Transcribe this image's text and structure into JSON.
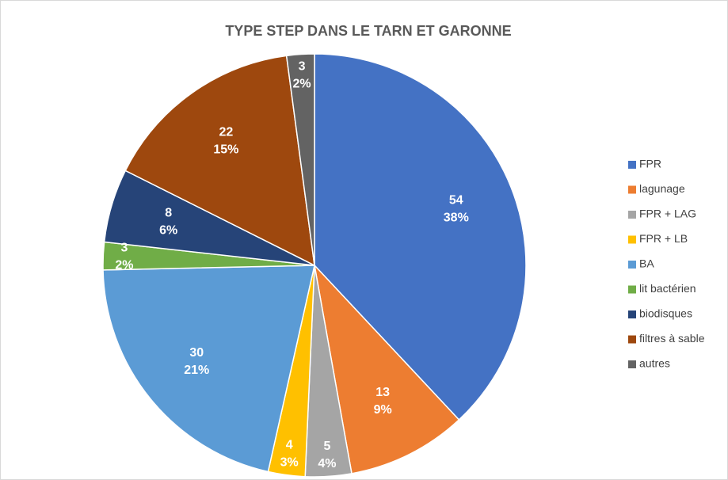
{
  "chart_data": {
    "type": "pie",
    "title": "TYPE STEP DANS LE TARN ET GARONNE",
    "categories": [
      "FPR",
      "lagunage",
      "FPR + LAG",
      "FPR + LB",
      "BA",
      "lit bactérien",
      "biodisques",
      "filtres à sable",
      "autres"
    ],
    "values": [
      54,
      13,
      5,
      4,
      30,
      3,
      8,
      22,
      3
    ],
    "percent_labels": [
      "38%",
      "9%",
      "4%",
      "3%",
      "21%",
      "2%",
      "6%",
      "15%",
      "2%"
    ],
    "colors": [
      "#4472c4",
      "#ed7d31",
      "#a5a5a5",
      "#ffc000",
      "#5b9bd5",
      "#70ad47",
      "#264478",
      "#9e480e",
      "#636363"
    ],
    "legend": "right"
  }
}
